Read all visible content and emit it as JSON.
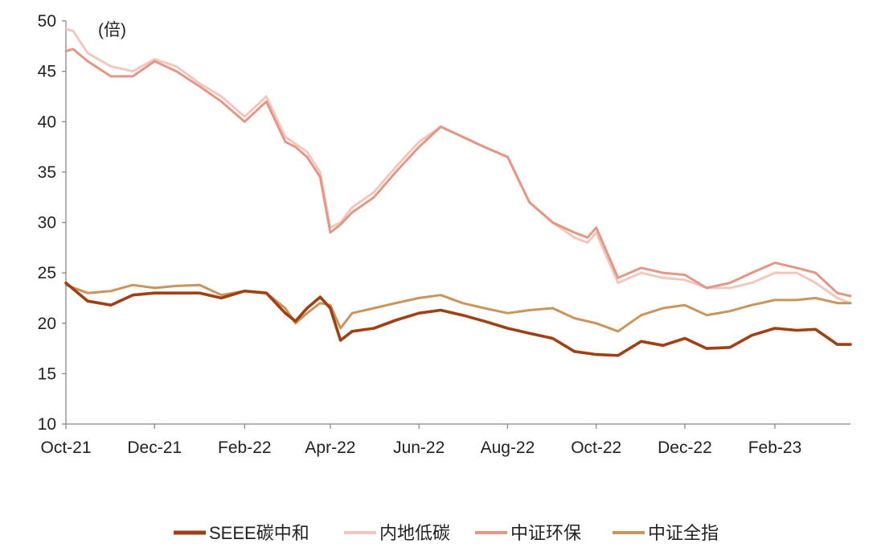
{
  "chart_data": {
    "type": "line",
    "unit_label": "(倍)",
    "ylim": [
      10,
      50
    ],
    "y_ticks": [
      "50",
      "45",
      "40",
      "35",
      "30",
      "25",
      "20",
      "15",
      "10"
    ],
    "x_ticks": [
      "Oct-21",
      "Dec-21",
      "Feb-22",
      "Apr-22",
      "Jun-22",
      "Aug-22",
      "Oct-22",
      "Dec-22",
      "Feb-23"
    ],
    "x_tick_dates": [
      "2021-10-01",
      "2021-12-01",
      "2022-02-01",
      "2022-04-01",
      "2022-06-01",
      "2022-08-01",
      "2022-10-01",
      "2022-12-01",
      "2023-02-01"
    ],
    "x_range": [
      "2021-10-01",
      "2023-03-25"
    ],
    "grid": false,
    "legend_position": "bottom",
    "series": [
      {
        "name": "SEEE碳中和",
        "color": "#A23F12",
        "x": [
          "2021-10-01",
          "2021-10-16",
          "2021-11-01",
          "2021-11-16",
          "2021-12-01",
          "2021-12-16",
          "2022-01-01",
          "2022-01-16",
          "2022-02-01",
          "2022-02-16",
          "2022-03-01",
          "2022-03-08",
          "2022-03-16",
          "2022-03-25",
          "2022-04-01",
          "2022-04-08",
          "2022-04-16",
          "2022-05-01",
          "2022-05-16",
          "2022-06-01",
          "2022-06-16",
          "2022-07-01",
          "2022-07-16",
          "2022-08-01",
          "2022-08-16",
          "2022-09-01",
          "2022-09-16",
          "2022-10-01",
          "2022-10-16",
          "2022-11-01",
          "2022-11-16",
          "2022-12-01",
          "2022-12-16",
          "2023-01-01",
          "2023-01-16",
          "2023-02-01",
          "2023-02-16",
          "2023-03-01",
          "2023-03-16",
          "2023-03-25"
        ],
        "values": [
          24.0,
          22.2,
          21.8,
          22.8,
          23.0,
          23.0,
          23.0,
          22.5,
          23.2,
          23.0,
          21.0,
          20.2,
          21.5,
          22.6,
          21.5,
          18.3,
          19.2,
          19.5,
          20.3,
          21.0,
          21.3,
          20.8,
          20.2,
          19.5,
          19.0,
          18.5,
          17.2,
          16.9,
          16.8,
          18.2,
          17.8,
          18.5,
          17.5,
          17.6,
          18.8,
          19.5,
          19.3,
          19.4,
          17.9,
          17.9
        ]
      },
      {
        "name": "内地低碳",
        "color": "#F2C8BE",
        "x": [
          "2021-10-01",
          "2021-10-06",
          "2021-10-16",
          "2021-11-01",
          "2021-11-16",
          "2021-12-01",
          "2021-12-16",
          "2022-01-01",
          "2022-01-16",
          "2022-02-01",
          "2022-02-16",
          "2022-03-01",
          "2022-03-08",
          "2022-03-16",
          "2022-03-25",
          "2022-04-01",
          "2022-04-08",
          "2022-04-16",
          "2022-05-01",
          "2022-05-16",
          "2022-06-01",
          "2022-06-16",
          "2022-07-01",
          "2022-07-16",
          "2022-08-01",
          "2022-08-16",
          "2022-09-01",
          "2022-09-16",
          "2022-09-25",
          "2022-10-01",
          "2022-10-16",
          "2022-11-01",
          "2022-11-16",
          "2022-12-01",
          "2022-12-16",
          "2023-01-01",
          "2023-01-16",
          "2023-02-01",
          "2023-02-16",
          "2023-03-01",
          "2023-03-16",
          "2023-03-25"
        ],
        "values": [
          49.2,
          49.0,
          46.8,
          45.5,
          45.0,
          46.2,
          45.5,
          43.8,
          42.5,
          40.5,
          42.5,
          38.5,
          37.8,
          37.0,
          35.0,
          29.5,
          30.0,
          31.5,
          33.0,
          35.5,
          38.0,
          39.5,
          38.5,
          37.5,
          36.5,
          32.0,
          30.0,
          28.5,
          28.0,
          29.0,
          24.0,
          25.0,
          24.5,
          24.3,
          23.5,
          23.5,
          24.0,
          25.0,
          25.0,
          24.0,
          22.5,
          22.0
        ]
      },
      {
        "name": "中证环保",
        "color": "#E59685",
        "x": [
          "2021-10-01",
          "2021-10-06",
          "2021-10-16",
          "2021-11-01",
          "2021-11-16",
          "2021-12-01",
          "2021-12-16",
          "2022-01-01",
          "2022-01-16",
          "2022-02-01",
          "2022-02-16",
          "2022-03-01",
          "2022-03-08",
          "2022-03-16",
          "2022-03-25",
          "2022-04-01",
          "2022-04-08",
          "2022-04-16",
          "2022-05-01",
          "2022-05-16",
          "2022-06-01",
          "2022-06-16",
          "2022-07-01",
          "2022-07-16",
          "2022-08-01",
          "2022-08-16",
          "2022-09-01",
          "2022-09-16",
          "2022-09-25",
          "2022-10-01",
          "2022-10-16",
          "2022-11-01",
          "2022-11-16",
          "2022-12-01",
          "2022-12-16",
          "2023-01-01",
          "2023-01-16",
          "2023-02-01",
          "2023-02-16",
          "2023-03-01",
          "2023-03-16",
          "2023-03-25"
        ],
        "values": [
          47.0,
          47.2,
          46.0,
          44.5,
          44.5,
          46.0,
          45.0,
          43.5,
          42.0,
          40.0,
          42.0,
          38.0,
          37.5,
          36.5,
          34.5,
          29.0,
          29.8,
          31.0,
          32.5,
          35.0,
          37.5,
          39.5,
          38.5,
          37.5,
          36.5,
          32.0,
          30.0,
          29.0,
          28.5,
          29.5,
          24.5,
          25.5,
          25.0,
          24.8,
          23.5,
          24.0,
          25.0,
          26.0,
          25.5,
          25.0,
          23.0,
          22.7
        ]
      },
      {
        "name": "中证全指",
        "color": "#C9955A",
        "x": [
          "2021-10-01",
          "2021-10-16",
          "2021-11-01",
          "2021-11-16",
          "2021-12-01",
          "2021-12-16",
          "2022-01-01",
          "2022-01-16",
          "2022-02-01",
          "2022-02-16",
          "2022-03-01",
          "2022-03-08",
          "2022-03-16",
          "2022-03-25",
          "2022-04-01",
          "2022-04-08",
          "2022-04-16",
          "2022-05-01",
          "2022-05-16",
          "2022-06-01",
          "2022-06-16",
          "2022-07-01",
          "2022-07-16",
          "2022-08-01",
          "2022-08-16",
          "2022-09-01",
          "2022-09-16",
          "2022-10-01",
          "2022-10-16",
          "2022-11-01",
          "2022-11-16",
          "2022-12-01",
          "2022-12-16",
          "2023-01-01",
          "2023-01-16",
          "2023-02-01",
          "2023-02-16",
          "2023-03-01",
          "2023-03-16",
          "2023-03-25"
        ],
        "values": [
          23.8,
          23.0,
          23.2,
          23.8,
          23.5,
          23.7,
          23.8,
          22.8,
          23.2,
          23.0,
          21.5,
          20.0,
          21.0,
          22.0,
          21.8,
          19.5,
          21.0,
          21.5,
          22.0,
          22.5,
          22.8,
          22.0,
          21.5,
          21.0,
          21.3,
          21.5,
          20.5,
          20.0,
          19.2,
          20.8,
          21.5,
          21.8,
          20.8,
          21.2,
          21.8,
          22.3,
          22.3,
          22.5,
          22.0,
          22.0
        ]
      }
    ]
  }
}
